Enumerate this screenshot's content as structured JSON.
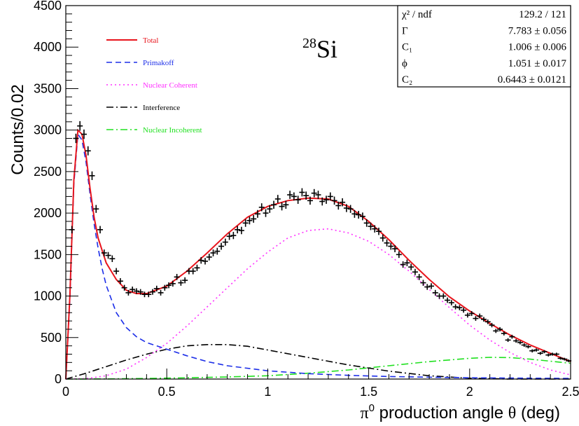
{
  "chart_data": {
    "type": "line",
    "ylabel": "Counts/0.02",
    "xlabel": "π⁰ production angle θ (deg)",
    "xlabel_parts": {
      "pi": "π",
      "sup": "0",
      "rest": " production angle ",
      "theta": "θ",
      "unit": " (deg)"
    },
    "xlim": [
      0,
      2.5
    ],
    "ylim": [
      0,
      4500
    ],
    "xticks": [
      0,
      0.5,
      1,
      1.5,
      2,
      2.5
    ],
    "xtick_labels": [
      "0",
      "0.5",
      "1",
      "1.5",
      "2",
      "2.5"
    ],
    "yticks": [
      0,
      500,
      1000,
      1500,
      2000,
      2500,
      3000,
      3500,
      4000,
      4500
    ],
    "ytick_labels": [
      "0",
      "500",
      "1000",
      "1500",
      "2000",
      "2500",
      "3000",
      "3500",
      "4000",
      "4500"
    ],
    "annotation": {
      "mass_number": "28",
      "element": "Si"
    },
    "legend": {
      "placement": "top-left",
      "entries": [
        {
          "name": "Total",
          "color": "#e8141c",
          "style": "solid"
        },
        {
          "name": "Primakoff",
          "color": "#1c2ee8",
          "style": "dashed"
        },
        {
          "name": "Nuclear Coherent",
          "color": "#ff30ff",
          "style": "dotted"
        },
        {
          "name": "Interference",
          "color": "#000000",
          "style": "dashdot"
        },
        {
          "name": "Nuclear Incoherent",
          "color": "#20e020",
          "style": "dashdot"
        }
      ]
    },
    "stats_box": {
      "placement": "top-right",
      "rows": [
        {
          "label": "χ² / ndf",
          "value": "129.2 / 121"
        },
        {
          "label": "Γ",
          "value": "7.783 ± 0.056"
        },
        {
          "label": "C₁",
          "value": "1.006 ± 0.006"
        },
        {
          "label": "ϕ",
          "value": "1.051 ± 0.017"
        },
        {
          "label": "C₂",
          "value": "0.6443 ± 0.0121"
        }
      ]
    },
    "series": [
      {
        "name": "Total",
        "x": [
          0,
          0.02,
          0.04,
          0.06,
          0.08,
          0.1,
          0.12,
          0.14,
          0.16,
          0.18,
          0.2,
          0.25,
          0.3,
          0.35,
          0.4,
          0.5,
          0.6,
          0.7,
          0.8,
          0.9,
          1.0,
          1.1,
          1.2,
          1.3,
          1.4,
          1.5,
          1.6,
          1.7,
          1.8,
          1.9,
          2.0,
          2.1,
          2.2,
          2.3,
          2.4,
          2.5
        ],
        "y": [
          0,
          1000,
          2400,
          3000,
          2950,
          2700,
          2300,
          1950,
          1700,
          1550,
          1400,
          1200,
          1070,
          1030,
          1030,
          1120,
          1300,
          1520,
          1750,
          1950,
          2080,
          2150,
          2180,
          2170,
          2080,
          1900,
          1680,
          1430,
          1200,
          990,
          820,
          670,
          530,
          410,
          310,
          210
        ]
      },
      {
        "name": "Primakoff",
        "x": [
          0,
          0.02,
          0.04,
          0.06,
          0.08,
          0.1,
          0.12,
          0.14,
          0.16,
          0.18,
          0.2,
          0.25,
          0.3,
          0.35,
          0.4,
          0.5,
          0.6,
          0.7,
          0.8,
          1.0,
          1.2,
          1.4,
          1.6,
          2.0,
          2.5
        ],
        "y": [
          0,
          950,
          2350,
          2950,
          2880,
          2620,
          2230,
          1870,
          1580,
          1330,
          1130,
          800,
          620,
          510,
          440,
          360,
          280,
          210,
          160,
          100,
          65,
          45,
          30,
          15,
          8
        ]
      },
      {
        "name": "Nuclear Coherent",
        "x": [
          0,
          0.1,
          0.2,
          0.3,
          0.4,
          0.5,
          0.6,
          0.7,
          0.8,
          0.9,
          1.0,
          1.1,
          1.2,
          1.3,
          1.4,
          1.5,
          1.6,
          1.7,
          1.8,
          1.9,
          2.0,
          2.1,
          2.2,
          2.3,
          2.4,
          2.5
        ],
        "y": [
          0,
          5,
          40,
          120,
          260,
          430,
          640,
          870,
          1100,
          1330,
          1530,
          1700,
          1790,
          1810,
          1760,
          1660,
          1500,
          1300,
          1080,
          860,
          650,
          470,
          320,
          200,
          110,
          50
        ]
      },
      {
        "name": "Interference",
        "x": [
          0,
          0.1,
          0.2,
          0.3,
          0.4,
          0.5,
          0.6,
          0.7,
          0.8,
          0.9,
          1.0,
          1.2,
          1.4,
          1.6,
          1.8,
          2.0,
          2.2,
          2.5
        ],
        "y": [
          0,
          70,
          150,
          230,
          300,
          360,
          400,
          415,
          415,
          395,
          350,
          260,
          170,
          95,
          40,
          10,
          0,
          0
        ]
      },
      {
        "name": "Nuclear Incoherent",
        "x": [
          0,
          0.2,
          0.4,
          0.6,
          0.8,
          1.0,
          1.2,
          1.4,
          1.6,
          1.8,
          2.0,
          2.1,
          2.2,
          2.3,
          2.4,
          2.5
        ],
        "y": [
          0,
          2,
          8,
          15,
          25,
          40,
          70,
          110,
          160,
          210,
          250,
          262,
          258,
          240,
          215,
          190
        ]
      }
    ],
    "data_points": {
      "name": "data",
      "x": [
        0.03,
        0.05,
        0.07,
        0.09,
        0.11,
        0.13,
        0.15,
        0.17,
        0.19,
        0.21,
        0.23,
        0.25,
        0.27,
        0.29,
        0.31,
        0.33,
        0.35,
        0.37,
        0.39,
        0.41,
        0.43,
        0.45,
        0.47,
        0.49,
        0.51,
        0.53,
        0.55,
        0.57,
        0.59,
        0.61,
        0.63,
        0.65,
        0.67,
        0.69,
        0.71,
        0.73,
        0.75,
        0.77,
        0.79,
        0.81,
        0.83,
        0.85,
        0.87,
        0.89,
        0.91,
        0.93,
        0.95,
        0.97,
        0.99,
        1.01,
        1.03,
        1.05,
        1.07,
        1.09,
        1.11,
        1.13,
        1.15,
        1.17,
        1.19,
        1.21,
        1.23,
        1.25,
        1.27,
        1.29,
        1.31,
        1.33,
        1.35,
        1.37,
        1.39,
        1.41,
        1.43,
        1.45,
        1.47,
        1.49,
        1.51,
        1.53,
        1.55,
        1.57,
        1.59,
        1.61,
        1.63,
        1.65,
        1.67,
        1.69,
        1.71,
        1.73,
        1.75,
        1.77,
        1.79,
        1.81,
        1.83,
        1.85,
        1.87,
        1.89,
        1.91,
        1.93,
        1.95,
        1.97,
        1.99,
        2.01,
        2.03,
        2.05,
        2.07,
        2.09,
        2.11,
        2.13,
        2.15,
        2.17,
        2.19,
        2.21,
        2.23,
        2.25,
        2.27,
        2.29,
        2.31,
        2.33,
        2.35,
        2.37,
        2.39,
        2.41,
        2.43,
        2.45,
        2.47,
        2.49
      ],
      "y": [
        1800,
        2900,
        3050,
        2950,
        2750,
        2450,
        2050,
        1800,
        1520,
        1490,
        1450,
        1300,
        1180,
        1100,
        1040,
        1080,
        1060,
        1050,
        1020,
        1020,
        1050,
        1090,
        1040,
        1100,
        1130,
        1150,
        1230,
        1160,
        1190,
        1300,
        1300,
        1340,
        1430,
        1420,
        1470,
        1520,
        1540,
        1600,
        1650,
        1720,
        1730,
        1800,
        1790,
        1880,
        1910,
        1930,
        1990,
        2070,
        2000,
        2050,
        2100,
        2170,
        2080,
        2100,
        2220,
        2200,
        2160,
        2250,
        2210,
        2150,
        2240,
        2220,
        2140,
        2160,
        2200,
        2150,
        2090,
        2130,
        2060,
        2050,
        1990,
        1980,
        1960,
        1880,
        1840,
        1810,
        1780,
        1700,
        1640,
        1600,
        1570,
        1500,
        1380,
        1400,
        1350,
        1290,
        1230,
        1160,
        1110,
        1120,
        1040,
        1000,
        1000,
        950,
        920,
        870,
        860,
        830,
        770,
        790,
        730,
        760,
        720,
        690,
        650,
        580,
        600,
        550,
        470,
        510,
        460,
        440,
        410,
        390,
        340,
        350,
        310,
        330,
        290,
        300,
        300,
        250,
        240,
        220
      ]
    }
  }
}
